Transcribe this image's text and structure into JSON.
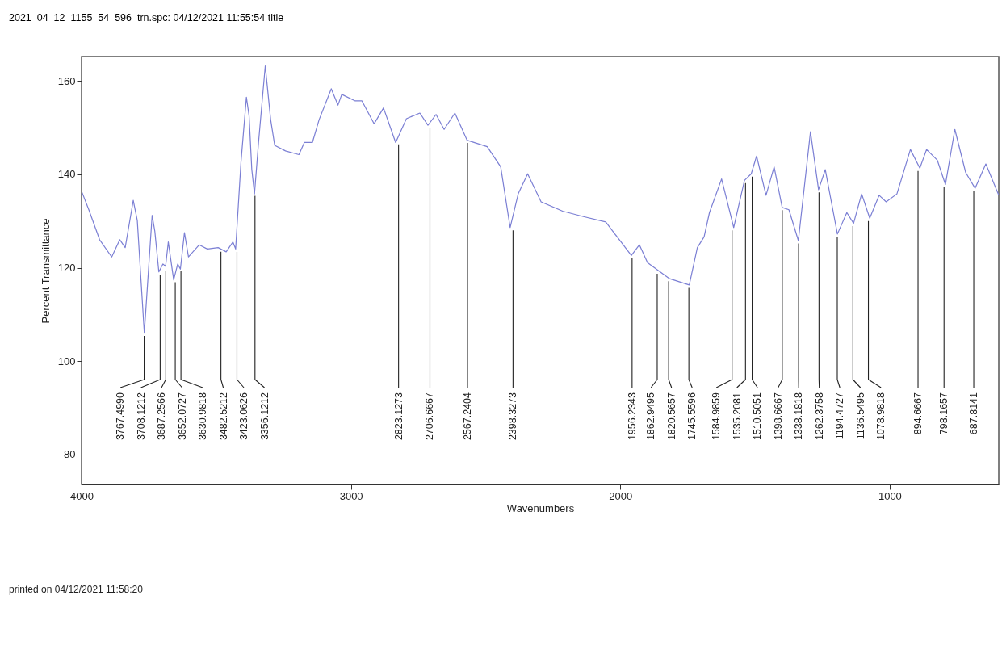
{
  "chart_data": {
    "type": "line",
    "title": "2021_04_12_1155_54_596_trn.spc: 04/12/2021 11:55:54 title",
    "xlabel": "Wavenumbers",
    "ylabel": "Percent Transmittance",
    "x": [
      3998,
      3973,
      3933,
      3888,
      3858,
      3838,
      3808,
      3793,
      3767,
      3738,
      3728,
      3713,
      3698,
      3688,
      3678,
      3658,
      3643,
      3633,
      3618,
      3603,
      3563,
      3533,
      3493,
      3463,
      3438,
      3428,
      3408,
      3388,
      3378,
      3368,
      3358,
      3343,
      3318,
      3298,
      3283,
      3243,
      3193,
      3173,
      3143,
      3118,
      3073,
      3048,
      3034,
      2984,
      2959,
      2914,
      2879,
      2834,
      2794,
      2744,
      2714,
      2684,
      2654,
      2614,
      2569,
      2494,
      2444,
      2409,
      2379,
      2344,
      2294,
      2214,
      2134,
      2054,
      1959,
      1929,
      1899,
      1819,
      1744,
      1714,
      1689,
      1669,
      1624,
      1579,
      1539,
      1514,
      1494,
      1459,
      1429,
      1399,
      1374,
      1339,
      1294,
      1264,
      1239,
      1194,
      1159,
      1134,
      1104,
      1074,
      1039,
      1013,
      973,
      923,
      888,
      863,
      823,
      793,
      758,
      718,
      683,
      643,
      595
    ],
    "values": [
      136.1,
      132.4,
      126.0,
      122.3,
      126.0,
      124.3,
      134.4,
      130.1,
      106.0,
      131.2,
      127.8,
      119.1,
      120.8,
      120.3,
      125.5,
      117.4,
      120.8,
      119.7,
      127.5,
      122.3,
      124.9,
      124.0,
      124.3,
      123.4,
      125.5,
      124.0,
      142.7,
      156.5,
      152.5,
      141.0,
      135.8,
      146.8,
      163.2,
      151.7,
      146.2,
      145.0,
      144.2,
      146.8,
      146.8,
      151.7,
      158.3,
      154.8,
      157.1,
      155.7,
      155.7,
      150.8,
      154.2,
      146.8,
      151.9,
      153.1,
      150.5,
      152.8,
      149.6,
      153.1,
      147.3,
      145.9,
      141.6,
      128.6,
      135.8,
      140.1,
      134.1,
      132.1,
      130.9,
      129.8,
      122.6,
      124.9,
      121.1,
      117.7,
      116.3,
      124.3,
      126.6,
      131.8,
      139.0,
      128.6,
      138.7,
      140.1,
      143.9,
      135.5,
      141.6,
      132.9,
      132.4,
      125.8,
      149.1,
      136.7,
      141.0,
      127.2,
      131.8,
      129.5,
      135.8,
      130.6,
      135.5,
      134.1,
      135.8,
      145.3,
      141.3,
      145.3,
      143.0,
      137.8,
      149.6,
      140.4,
      137.0,
      142.2,
      135.5
    ],
    "color": "#7b7fd4",
    "xlim": [
      4000,
      595
    ],
    "ylim": [
      73.6,
      165.2
    ],
    "xticks": [
      4000,
      3000,
      2000,
      1000
    ],
    "yticks": [
      80,
      100,
      120,
      140,
      160
    ],
    "grid": false,
    "annotations": [
      {
        "text": "3767.4990",
        "x": 3767.499,
        "y": 106
      },
      {
        "text": "3708.1212",
        "x": 3708.1212,
        "y": 119
      },
      {
        "text": "3687.2566",
        "x": 3687.2566,
        "y": 120
      },
      {
        "text": "3652.0727",
        "x": 3652.0727,
        "y": 117.5
      },
      {
        "text": "3630.9818",
        "x": 3630.9818,
        "y": 120
      },
      {
        "text": "3482.5212",
        "x": 3482.5212,
        "y": 124
      },
      {
        "text": "3423.0626",
        "x": 3423.0626,
        "y": 124
      },
      {
        "text": "3356.1212",
        "x": 3356.1212,
        "y": 136
      },
      {
        "text": "2823.1273",
        "x": 2823.1273,
        "y": 147
      },
      {
        "text": "2706.6667",
        "x": 2706.6667,
        "y": 150.5
      },
      {
        "text": "2567.2404",
        "x": 2567.2404,
        "y": 147.3
      },
      {
        "text": "2398.3273",
        "x": 2398.3273,
        "y": 128.6
      },
      {
        "text": "1956.2343",
        "x": 1956.2343,
        "y": 122.6
      },
      {
        "text": "1862.9495",
        "x": 1862.9495,
        "y": 119.3
      },
      {
        "text": "1820.5657",
        "x": 1820.5657,
        "y": 117.7
      },
      {
        "text": "1745.5596",
        "x": 1745.5596,
        "y": 116.3
      },
      {
        "text": "1584.9859",
        "x": 1584.9859,
        "y": 128.6
      },
      {
        "text": "1535.2081",
        "x": 1535.2081,
        "y": 138.7
      },
      {
        "text": "1510.5051",
        "x": 1510.5051,
        "y": 140.1
      },
      {
        "text": "1398.6667",
        "x": 1398.6667,
        "y": 132.9
      },
      {
        "text": "1338.1818",
        "x": 1338.1818,
        "y": 125.8
      },
      {
        "text": "1262.3758",
        "x": 1262.3758,
        "y": 136.7
      },
      {
        "text": "1194.4727",
        "x": 1194.4727,
        "y": 127.2
      },
      {
        "text": "1136.5495",
        "x": 1136.5495,
        "y": 129.5
      },
      {
        "text": "1078.9818",
        "x": 1078.9818,
        "y": 130.6
      },
      {
        "text": "894.6667",
        "x": 894.6667,
        "y": 141.3
      },
      {
        "text": "798.1657",
        "x": 798.1657,
        "y": 137.8
      },
      {
        "text": "687.8141",
        "x": 687.8141,
        "y": 137.0
      },
      "printed on 04/12/2021 11:58:20"
    ]
  }
}
